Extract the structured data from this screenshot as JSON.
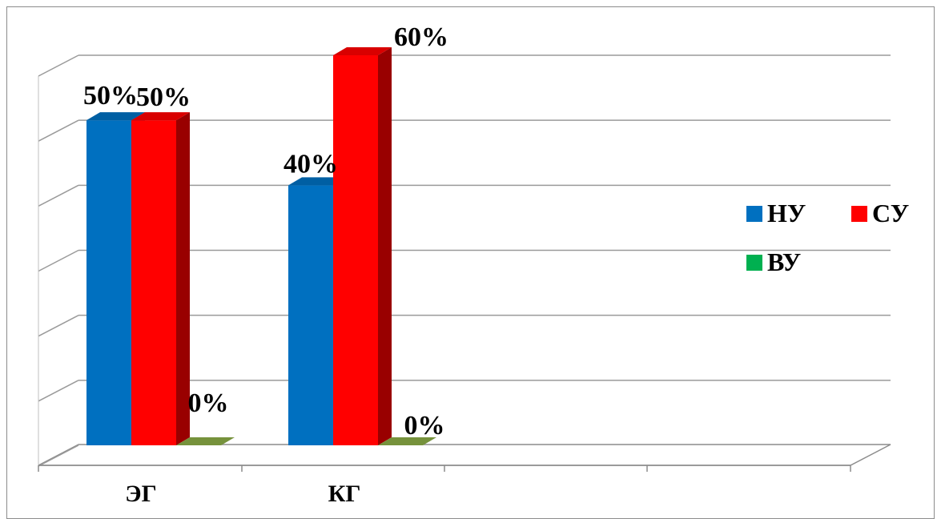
{
  "chart_data": {
    "type": "bar",
    "categories": [
      "ЭГ",
      "КГ"
    ],
    "series": [
      {
        "name": "НУ",
        "values": [
          50,
          40
        ],
        "labels": [
          "50%",
          "40%"
        ],
        "color": "#0070c0"
      },
      {
        "name": "СУ",
        "values": [
          50,
          60
        ],
        "labels": [
          "50%",
          "60%"
        ],
        "color": "#ff0000"
      },
      {
        "name": "ВУ",
        "values": [
          0,
          0
        ],
        "labels": [
          "0%",
          "0%"
        ],
        "color": "#00b050"
      }
    ],
    "ylim": [
      0,
      60
    ],
    "grid": true,
    "legend": "right",
    "three_d": true
  }
}
